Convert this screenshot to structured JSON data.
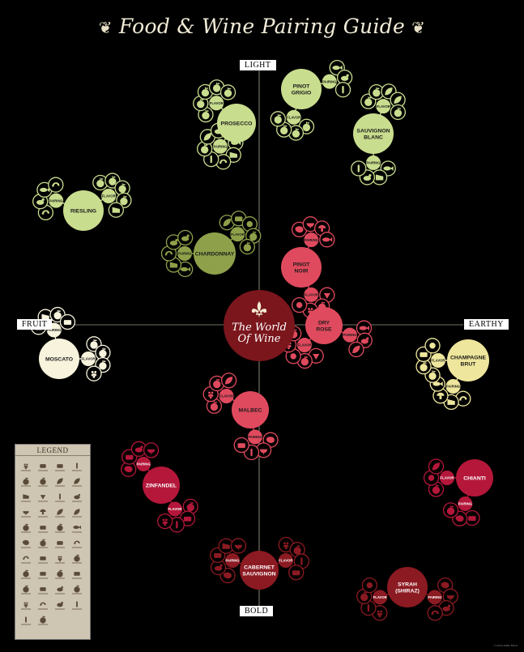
{
  "title": "Food & Wine Pairing Guide",
  "axes": {
    "top": "LIGHT",
    "bottom": "BOLD",
    "left": "FRUIT",
    "right": "EARTHY"
  },
  "center": {
    "line1": "The World",
    "line2": "Of Wine"
  },
  "legend_title": "LEGEND",
  "copyright": "© 2013 HAZEL BOLD",
  "label_pairing": "PAIRING",
  "label_flavor": "FLAVOR",
  "colors": {
    "background": "#000000",
    "light_green": "#c9dd8e",
    "olive_green": "#8ea14a",
    "cream": "#f7f3dc",
    "pale_yellow": "#eee69c",
    "pink_red": "#e04a5e",
    "crimson": "#b4173a",
    "dark_red": "#8c1a22",
    "center": "#7a161c"
  },
  "wines": [
    {
      "id": "prosecco",
      "lines": [
        "PROSECCO"
      ],
      "color": "#c9dd8e",
      "pairing_icons": [
        "fish-icon",
        "cheese-icon",
        "shrimp-icon",
        "vegetable-icon",
        "apple-icon",
        "leaf-icon",
        "turkey-icon"
      ],
      "flavor_icons": [
        "apple-icon",
        "pear-icon",
        "lemon-icon",
        "citrus-icon",
        "apple-icon"
      ]
    },
    {
      "id": "pinot-grigio",
      "lines": [
        "PINOT",
        "GRIGIO"
      ],
      "color": "#c9dd8e",
      "pairing_icons": [
        "fish-icon",
        "chicken-icon",
        "asparagus-icon"
      ],
      "flavor_icons": [
        "apple-icon",
        "lemon-icon",
        "pear-icon",
        "citrus-icon"
      ]
    },
    {
      "id": "sauvignon-blanc",
      "lines": [
        "SAUVIGNON",
        "BLANC"
      ],
      "color": "#c9dd8e",
      "pairing_icons": [
        "fish-icon",
        "cheese-icon",
        "turkey-icon",
        "pepper-icon"
      ],
      "flavor_icons": [
        "lime-icon",
        "apple-icon",
        "herb-icon",
        "grass-icon",
        "pear-icon"
      ]
    },
    {
      "id": "riesling",
      "lines": [
        "RIESLING"
      ],
      "color": "#c9dd8e",
      "pairing_icons": [
        "lobster-icon",
        "chicken-icon",
        "fish-icon",
        "shrimp-icon"
      ],
      "flavor_icons": [
        "apple-icon",
        "pear-icon",
        "peach-icon",
        "lime-icon",
        "cheese-icon"
      ]
    },
    {
      "id": "chardonnay",
      "lines": [
        "CHARDONNAY"
      ],
      "color": "#8ea14a",
      "pairing_icons": [
        "fish-icon",
        "cheese-icon",
        "lobster-icon",
        "chicken-icon",
        "turkey-icon"
      ],
      "flavor_icons": [
        "oak-leaf-icon",
        "butter-icon",
        "pineapple-icon",
        "apple-icon",
        "pear-icon"
      ]
    },
    {
      "id": "pinot-noir",
      "lines": [
        "PINOT",
        "NOIR"
      ],
      "color": "#e04a5e",
      "pairing_icons": [
        "steak-icon",
        "grill-icon",
        "mushroom-icon",
        "fish-icon"
      ],
      "flavor_icons": [
        "strawberry-icon",
        "cherry-icon",
        "raspberry-icon",
        "earth-icon"
      ]
    },
    {
      "id": "dry-rose",
      "lines": [
        "DRY",
        "ROSE"
      ],
      "color": "#e04a5e",
      "pairing_icons": [
        "fish-icon",
        "chicken-icon",
        "salad-icon"
      ],
      "flavor_icons": [
        "strawberry-icon",
        "cherry-icon",
        "watermelon-icon",
        "raspberry-icon",
        "citrus-icon"
      ]
    },
    {
      "id": "moscato",
      "lines": [
        "MOSCATO"
      ],
      "color": "#f7f3dc",
      "pairing_icons": [
        "cake-icon",
        "cheese-icon",
        "fruit-icon",
        "cookie-icon"
      ],
      "flavor_icons": [
        "peach-icon",
        "orange-icon",
        "pear-icon",
        "grape-icon"
      ]
    },
    {
      "id": "champagne-brut",
      "lines": [
        "CHAMPAGNE",
        "BRUT"
      ],
      "color": "#eee69c",
      "pairing_icons": [
        "shrimp-icon",
        "cheese-icon",
        "mushroom-icon",
        "fish-icon"
      ],
      "flavor_icons": [
        "lemon-icon",
        "apple-icon",
        "toast-icon",
        "almond-icon"
      ]
    },
    {
      "id": "malbec",
      "lines": [
        "MALBEC"
      ],
      "color": "#e04a5e",
      "pairing_icons": [
        "steak-icon",
        "grill-icon",
        "pepper-icon",
        "pizza-icon"
      ],
      "flavor_icons": [
        "plum-icon",
        "blackberry-icon",
        "cherry-icon",
        "tobacco-icon"
      ]
    },
    {
      "id": "zinfandel",
      "lines": [
        "ZINFANDEL"
      ],
      "color": "#b4173a",
      "pairing_icons": [
        "steak-icon",
        "pizza-icon",
        "chicken-icon",
        "grill-icon"
      ],
      "flavor_icons": [
        "cherry-icon",
        "jam-icon",
        "pepper-icon",
        "blackberry-icon"
      ]
    },
    {
      "id": "chianti",
      "lines": [
        "CHIANTI"
      ],
      "color": "#b4173a",
      "pairing_icons": [
        "pizza-icon",
        "steak-icon",
        "tomato-icon"
      ],
      "flavor_icons": [
        "cherry-icon",
        "mortar-icon",
        "herb-icon"
      ]
    },
    {
      "id": "cabernet-sauvignon",
      "lines": [
        "CABERNET",
        "SAUVIGNON"
      ],
      "color": "#8c1a22",
      "pairing_icons": [
        "steak-icon",
        "chicken-icon",
        "bread-icon",
        "cheese-icon",
        "grill-icon"
      ],
      "flavor_icons": [
        "blackberry-icon",
        "cherry-icon",
        "bell-pepper-icon",
        "chocolate-icon"
      ]
    },
    {
      "id": "syrah",
      "lines": [
        "SYRAH",
        "(SHIRAZ)"
      ],
      "color": "#8c1a22",
      "pairing_icons": [
        "steak-icon",
        "grill-icon",
        "lamb-icon",
        "sausage-icon"
      ],
      "flavor_icons": [
        "blackberry-icon",
        "pepper-icon",
        "plum-icon",
        "smoke-icon"
      ]
    }
  ]
}
